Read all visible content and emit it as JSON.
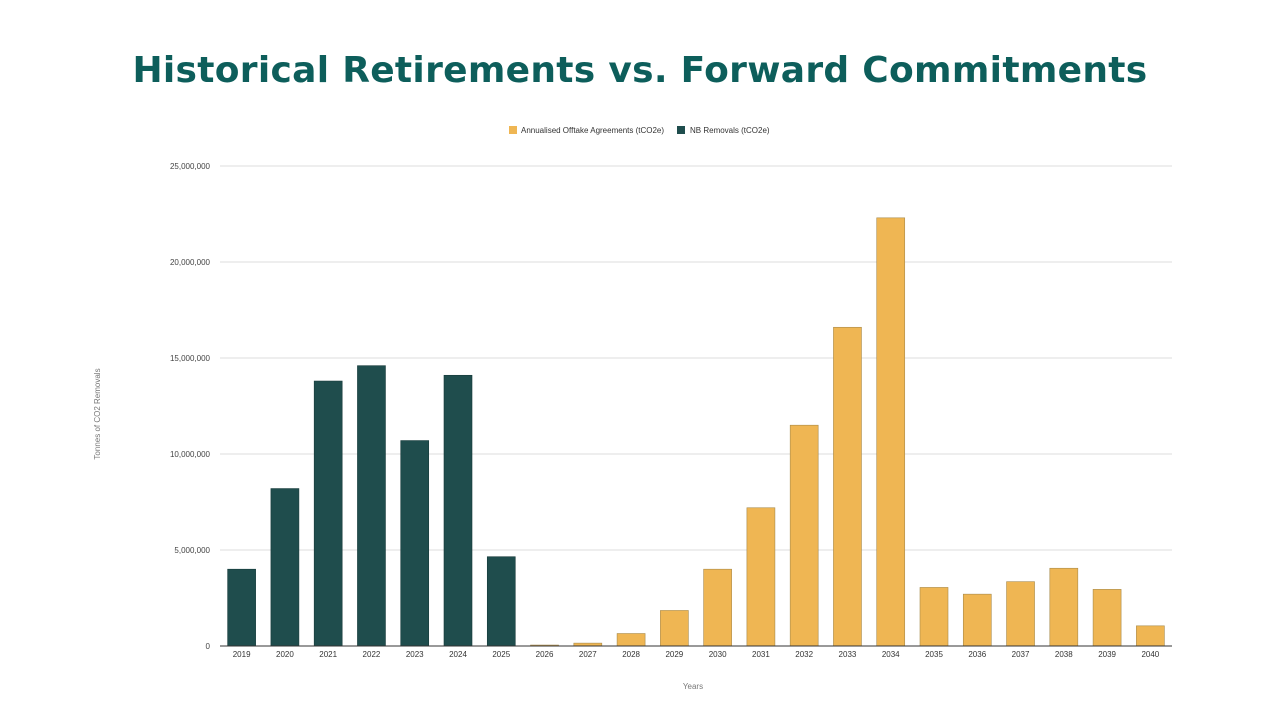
{
  "title": "Historical Retirements vs. Forward Commitments",
  "chart_data": {
    "type": "bar",
    "categories": [
      "2019",
      "2020",
      "2021",
      "2022",
      "2023",
      "2024",
      "2025",
      "2026",
      "2027",
      "2028",
      "2029",
      "2030",
      "2031",
      "2032",
      "2033",
      "2034",
      "2035",
      "2036",
      "2037",
      "2038",
      "2039",
      "2040"
    ],
    "series": [
      {
        "name": "Annualised Offtake Agreements (tCO2e)",
        "color": "#efb653",
        "values": [
          null,
          null,
          null,
          null,
          null,
          null,
          null,
          50000,
          150000,
          650000,
          1850000,
          4000000,
          7200000,
          11500000,
          16600000,
          22300000,
          3050000,
          2700000,
          3350000,
          4050000,
          2950000,
          1050000
        ]
      },
      {
        "name": "NB Removals (tCO2e)",
        "color": "#1f4d4d",
        "values": [
          4000000,
          8200000,
          13800000,
          14600000,
          10700000,
          14100000,
          4650000,
          null,
          null,
          null,
          null,
          null,
          null,
          null,
          null,
          null,
          null,
          null,
          null,
          null,
          null,
          null
        ]
      }
    ],
    "yticks": [
      "0",
      "5,000,000",
      "10,000,000",
      "15,000,000",
      "20,000,000",
      "25,000,000"
    ],
    "xlabel": "Years",
    "ylabel": "Tonnes of CO2 Removals",
    "ylim": [
      0,
      25000000
    ],
    "grid": true,
    "legend_position": "top"
  }
}
